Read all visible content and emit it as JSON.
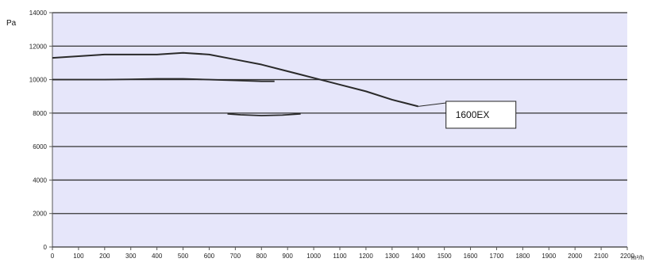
{
  "chart_data": {
    "type": "line",
    "y_unit_label": "Pa",
    "x_unit_label": "m³/h",
    "xlim": [
      0,
      2200
    ],
    "ylim": [
      0,
      14000
    ],
    "x_ticks": [
      "0",
      "100",
      "200",
      "300",
      "400",
      "500",
      "600",
      "700",
      "800",
      "900",
      "1000",
      "1100",
      "1200",
      "1300",
      "1400",
      "1500",
      "1600",
      "1700",
      "1800",
      "1900",
      "2000",
      "2100",
      "2200"
    ],
    "y_ticks": [
      "0",
      "2000",
      "4000",
      "6000",
      "8000",
      "10000",
      "12000",
      "14000"
    ],
    "y_tick_values": [
      0,
      2000,
      4000,
      6000,
      8000,
      10000,
      12000,
      14000
    ],
    "grid": "horizontal",
    "plot_background": "#E6E6FA",
    "line_color": "#2a2a2a",
    "series": [
      {
        "name": "1600EX",
        "x": [
          0,
          100,
          200,
          300,
          400,
          500,
          600,
          700,
          800,
          900,
          1000,
          1100,
          1200,
          1300,
          1400
        ],
        "y": [
          11300,
          11400,
          11500,
          11500,
          11500,
          11600,
          11500,
          11200,
          10900,
          10500,
          10100,
          9700,
          9300,
          8800,
          8400
        ]
      },
      {
        "x": [
          0,
          100,
          200,
          300,
          400,
          500,
          600,
          700,
          800,
          850
        ],
        "y": [
          10000,
          10000,
          10000,
          10020,
          10050,
          10050,
          10000,
          9950,
          9900,
          9900
        ]
      },
      {
        "x": [
          670,
          720,
          800,
          880,
          950
        ],
        "y": [
          7950,
          7900,
          7850,
          7880,
          7950
        ]
      }
    ],
    "annotations": [
      {
        "text": "1600EX",
        "x": 1640,
        "y": 7900
      }
    ]
  }
}
